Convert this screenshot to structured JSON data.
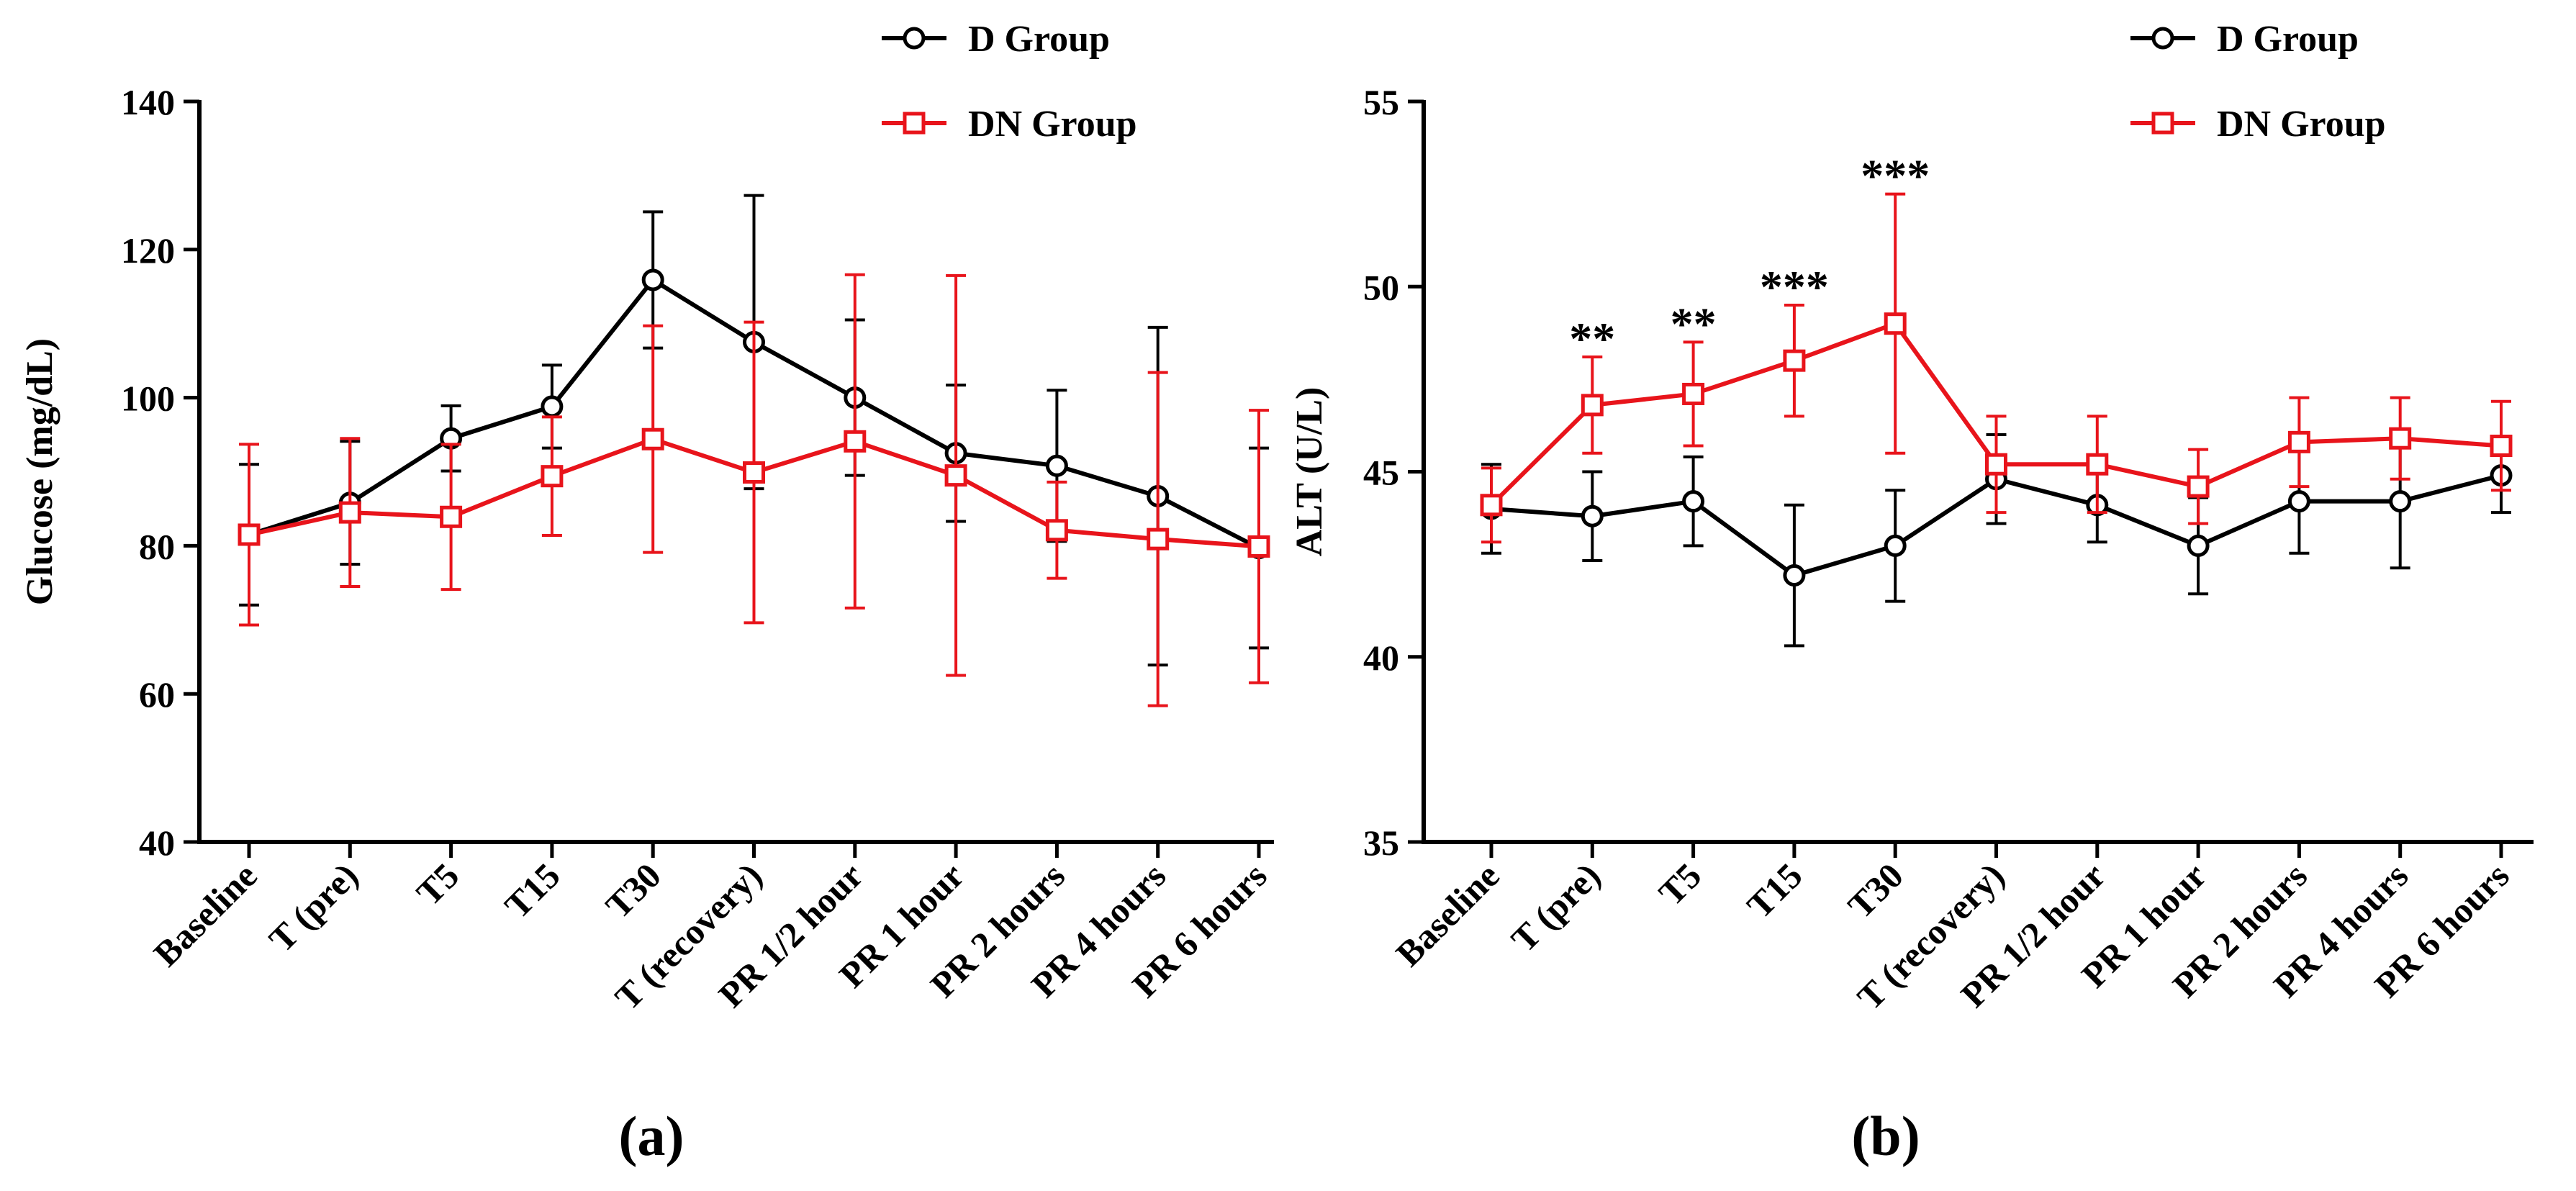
{
  "chart_data": [
    {
      "type": "line",
      "panel_label": "a",
      "ylabel": "Glucose (mg/dL)",
      "xlabel": "",
      "ylim": [
        40,
        140
      ],
      "yticks": [
        40,
        60,
        80,
        100,
        120,
        140
      ],
      "categories": [
        "Baseline",
        "T (pre)",
        "T5",
        "T15",
        "T30",
        "T (recovery)",
        "PR 1/2 hour",
        "PR 1 hour",
        "PR 2 hours",
        "PR 4 hours",
        "PR 6 hours"
      ],
      "legend_position": "top-right",
      "series": [
        {
          "name": "D Group",
          "color": "#000000",
          "marker": "circle",
          "values": [
            81.5,
            85.8,
            94.5,
            98.8,
            115.9,
            107.5,
            100.0,
            92.5,
            90.8,
            86.7,
            79.7
          ],
          "errors": [
            9.5,
            8.3,
            4.4,
            5.6,
            9.2,
            19.8,
            10.5,
            9.2,
            10.2,
            22.8,
            13.5
          ]
        },
        {
          "name": "DN Group",
          "color": "#e8141b",
          "marker": "square",
          "values": [
            81.5,
            84.5,
            83.9,
            89.4,
            94.4,
            89.9,
            94.1,
            89.5,
            82.1,
            80.9,
            79.9
          ],
          "errors": [
            12.2,
            10.0,
            9.8,
            8.0,
            15.3,
            20.3,
            22.5,
            27.0,
            6.5,
            22.5,
            18.4
          ]
        }
      ],
      "annotations": []
    },
    {
      "type": "line",
      "panel_label": "b",
      "ylabel": "ALT (U/L)",
      "xlabel": "",
      "ylim": [
        35,
        55
      ],
      "yticks": [
        35,
        40,
        45,
        50,
        55
      ],
      "categories": [
        "Baseline",
        "T (pre)",
        "T5",
        "T15",
        "T30",
        "T (recovery)",
        "PR 1/2 hour",
        "PR 1 hour",
        "PR 2 hours",
        "PR 4 hours",
        "PR 6 hours"
      ],
      "legend_position": "top-right",
      "series": [
        {
          "name": "D Group",
          "color": "#000000",
          "marker": "circle",
          "values": [
            44.0,
            43.8,
            44.2,
            42.2,
            43.0,
            44.8,
            44.1,
            43.0,
            44.2,
            44.2,
            44.9
          ],
          "errors": [
            1.2,
            1.2,
            1.2,
            1.9,
            1.5,
            1.2,
            1.0,
            1.3,
            1.4,
            1.8,
            1.0
          ]
        },
        {
          "name": "DN Group",
          "color": "#e8141b",
          "marker": "square",
          "values": [
            44.1,
            46.8,
            47.1,
            48.0,
            49.0,
            45.2,
            45.2,
            44.6,
            45.8,
            45.9,
            45.7
          ],
          "errors": [
            1.0,
            1.3,
            1.4,
            1.5,
            3.5,
            1.3,
            1.3,
            1.0,
            1.2,
            1.1,
            1.2
          ]
        }
      ],
      "annotations": [
        {
          "category_index": 1,
          "text": "**"
        },
        {
          "category_index": 2,
          "text": "**"
        },
        {
          "category_index": 3,
          "text": "***"
        },
        {
          "category_index": 4,
          "text": "***"
        }
      ]
    }
  ]
}
